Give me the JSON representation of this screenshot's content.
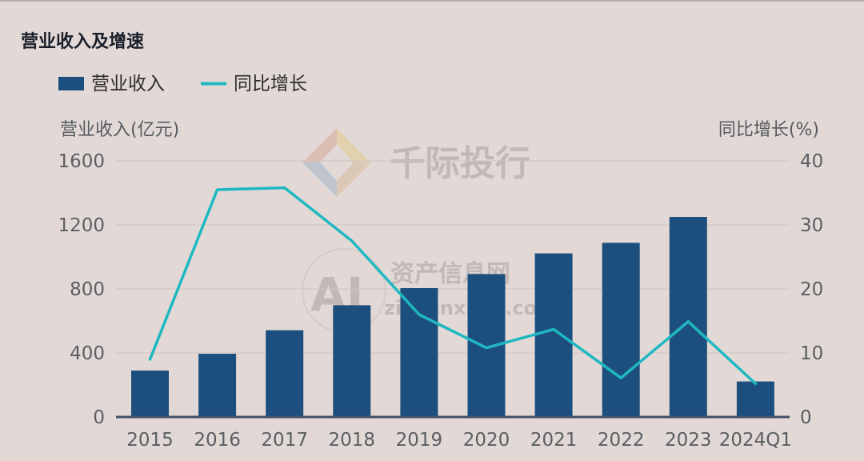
{
  "chart_data": {
    "type": "bar",
    "title": "营业收入及增速",
    "categories": [
      "2015",
      "2016",
      "2017",
      "2018",
      "2019",
      "2020",
      "2021",
      "2022",
      "2023",
      "2024Q1"
    ],
    "series": [
      {
        "name": "营业收入",
        "axis": "left",
        "kind": "bar",
        "color": "#1c4f7d",
        "values": [
          290,
          395,
          542,
          698,
          805,
          893,
          1022,
          1088,
          1250,
          222
        ]
      },
      {
        "name": "同比增长",
        "axis": "right",
        "kind": "line",
        "color": "#1fb8c1",
        "values": [
          9.0,
          35.5,
          35.8,
          27.5,
          16.0,
          10.8,
          13.7,
          6.1,
          14.9,
          5.2
        ]
      }
    ],
    "ylabel_left": "营业收入(亿元)",
    "ylabel_right": "同比增长(%)",
    "ylim_left": [
      0,
      1600
    ],
    "yticks_left": [
      "0",
      "400",
      "800",
      "1200",
      "1600"
    ],
    "ylim_right": [
      0,
      40
    ],
    "yticks_right": [
      "0",
      "10",
      "20",
      "30",
      "40"
    ],
    "grid": true,
    "legend_position": "top-left"
  },
  "watermark": {
    "brand": "千际投行",
    "logo_letters": "AI",
    "site_name": "资产信息网",
    "site_url": "zichanxinxi.com"
  }
}
